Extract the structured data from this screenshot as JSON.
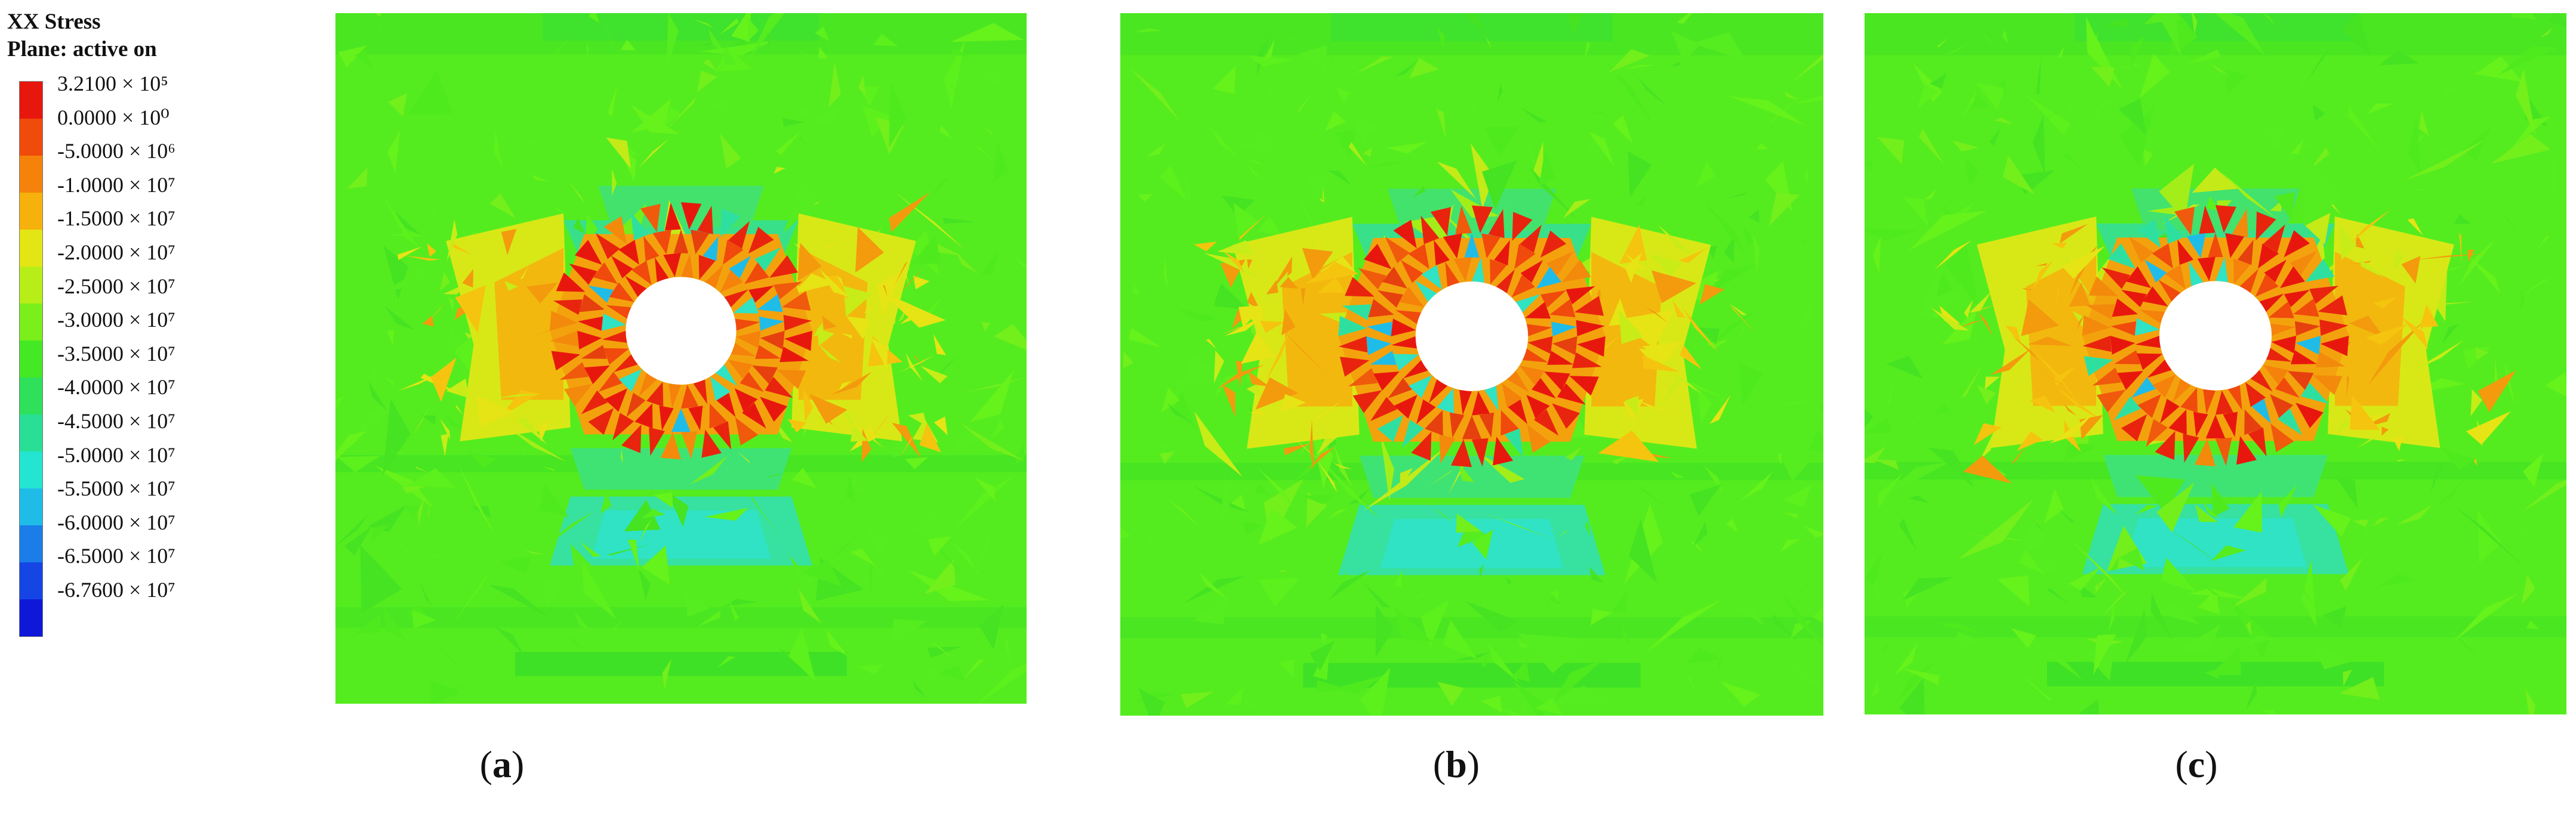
{
  "legend": {
    "title_line1": "XX Stress",
    "title_line2": "Plane: active on",
    "ticks": [
      "3.2100 × 10⁵",
      "0.0000 × 10⁰",
      "-5.0000 × 10⁶",
      "-1.0000 × 10⁷",
      "-1.5000 × 10⁷",
      "-2.0000 × 10⁷",
      "-2.5000 × 10⁷",
      "-3.0000 × 10⁷",
      "-3.5000 × 10⁷",
      "-4.0000 × 10⁷",
      "-4.5000 × 10⁷",
      "-5.0000 × 10⁷",
      "-5.5000 × 10⁷",
      "-6.0000 × 10⁷",
      "-6.5000 × 10⁷",
      "-6.7600 × 10⁷"
    ],
    "colors": [
      "#e8170e",
      "#f04a0c",
      "#f5820b",
      "#f6b10c",
      "#e4e514",
      "#b7ee18",
      "#7aef1b",
      "#44e824",
      "#2ee05a",
      "#28df95",
      "#23e5d2",
      "#1fbce8",
      "#1a7de8",
      "#1545e4",
      "#0f18d8"
    ]
  },
  "panels": [
    {
      "id": "a",
      "caption_letter": "a"
    },
    {
      "id": "b",
      "caption_letter": "b"
    },
    {
      "id": "c",
      "caption_letter": "c"
    }
  ]
}
